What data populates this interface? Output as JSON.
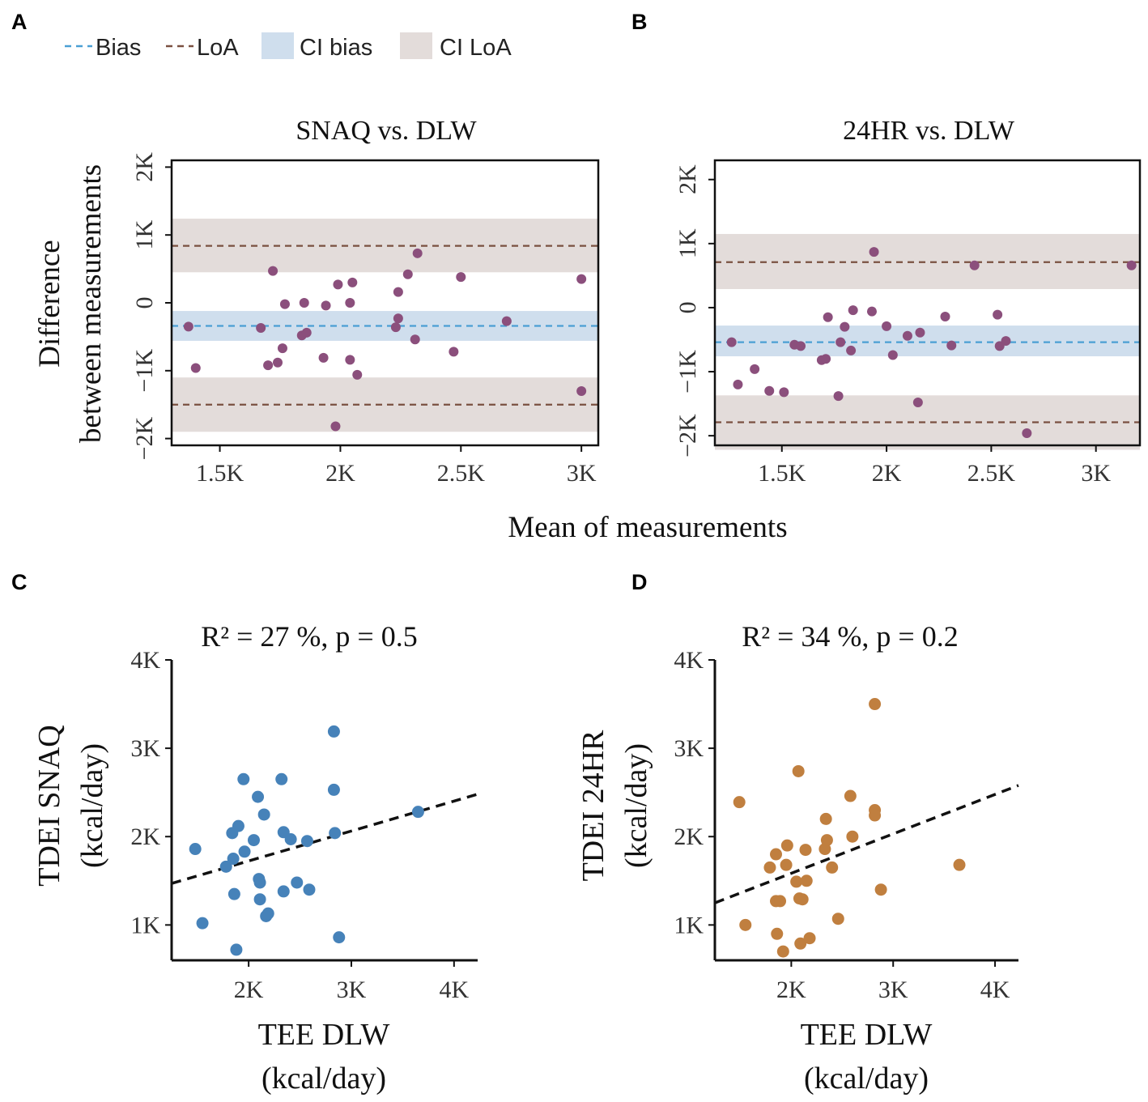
{
  "figure": {
    "panel_labels": [
      "A",
      "B",
      "C",
      "D"
    ],
    "shared_xlabel": "Mean of measurements",
    "shared_ylabel_line1": "Difference",
    "shared_ylabel_line2": "between measurements"
  },
  "legend": {
    "bias": "Bias",
    "loa": "LoA",
    "ci_bias": "CI bias",
    "ci_loa": "CI LoA"
  },
  "colors": {
    "bias_line": "#4a9fd4",
    "loa_line": "#7a5040",
    "ci_bias_band": "#cfdeed",
    "ci_loa_band": "#e3dcda",
    "ba_points": "#8b4f7c",
    "snaq_points": "#4682b9",
    "hr24_points": "#c07f3f",
    "regression_line": "#111111"
  },
  "chart_data": [
    {
      "id": "A",
      "type": "scatter",
      "title": "SNAQ vs. DLW",
      "xlim": [
        1300,
        3070
      ],
      "ylim": [
        -2100,
        2100
      ],
      "xticks": [
        1500,
        2000,
        2500,
        3000
      ],
      "xticklabels": [
        "1.5K",
        "2K",
        "2.5K",
        "3K"
      ],
      "yticks": [
        -2000,
        -1000,
        0,
        1000,
        2000
      ],
      "yticklabels": [
        "−2K",
        "−1K",
        "0",
        "1K",
        "2K"
      ],
      "bias": -340,
      "bias_ci": [
        -560,
        -120
      ],
      "loa_upper": 840,
      "loa_upper_ci": [
        450,
        1240
      ],
      "loa_lower": -1500,
      "loa_lower_ci": [
        -1900,
        -1100
      ],
      "points": [
        [
          1370,
          -350
        ],
        [
          1400,
          -960
        ],
        [
          1670,
          -370
        ],
        [
          1700,
          -920
        ],
        [
          1720,
          470
        ],
        [
          1740,
          -880
        ],
        [
          1760,
          -670
        ],
        [
          1770,
          -20
        ],
        [
          1840,
          -480
        ],
        [
          1850,
          0
        ],
        [
          1860,
          -440
        ],
        [
          1930,
          -810
        ],
        [
          1940,
          -40
        ],
        [
          1980,
          -1820
        ],
        [
          1990,
          270
        ],
        [
          2040,
          0
        ],
        [
          2040,
          -840
        ],
        [
          2050,
          300
        ],
        [
          2070,
          -1060
        ],
        [
          2230,
          -360
        ],
        [
          2240,
          160
        ],
        [
          2240,
          -230
        ],
        [
          2280,
          420
        ],
        [
          2310,
          -540
        ],
        [
          2320,
          730
        ],
        [
          2470,
          -720
        ],
        [
          2500,
          380
        ],
        [
          2690,
          -270
        ],
        [
          3000,
          350
        ],
        [
          3000,
          -1300
        ]
      ]
    },
    {
      "id": "B",
      "type": "scatter",
      "title": "24HR vs. DLW",
      "xlim": [
        1180,
        3210
      ],
      "ylim": [
        -2150,
        2300
      ],
      "xticks": [
        1500,
        2000,
        2500,
        3000
      ],
      "xticklabels": [
        "1.5K",
        "2K",
        "2.5K",
        "3K"
      ],
      "yticks": [
        -2000,
        -1000,
        0,
        1000,
        2000
      ],
      "yticklabels": [
        "−2K",
        "−1K",
        "0",
        "1K",
        "2K"
      ],
      "bias": -540,
      "bias_ci": [
        -760,
        -280
      ],
      "loa_upper": 710,
      "loa_upper_ci": [
        290,
        1150
      ],
      "loa_lower": -1790,
      "loa_lower_ci": [
        -2220,
        -1370
      ],
      "points": [
        [
          1260,
          -540
        ],
        [
          1290,
          -1200
        ],
        [
          1370,
          -960
        ],
        [
          1440,
          -1300
        ],
        [
          1510,
          -1320
        ],
        [
          1560,
          -580
        ],
        [
          1590,
          -600
        ],
        [
          1690,
          -820
        ],
        [
          1710,
          -800
        ],
        [
          1720,
          -150
        ],
        [
          1770,
          -1380
        ],
        [
          1780,
          -540
        ],
        [
          1800,
          -300
        ],
        [
          1830,
          -670
        ],
        [
          1840,
          -40
        ],
        [
          1930,
          -60
        ],
        [
          1940,
          870
        ],
        [
          2000,
          -290
        ],
        [
          2030,
          -740
        ],
        [
          2100,
          -440
        ],
        [
          2150,
          -1480
        ],
        [
          2160,
          -390
        ],
        [
          2280,
          -140
        ],
        [
          2310,
          -590
        ],
        [
          2420,
          660
        ],
        [
          2530,
          -110
        ],
        [
          2540,
          -600
        ],
        [
          2570,
          -520
        ],
        [
          2670,
          -1960
        ],
        [
          3170,
          660
        ]
      ]
    },
    {
      "id": "C",
      "type": "scatter",
      "title": "R² = 27 %, p = 0.5",
      "xlabel_line1": "TEE DLW",
      "xlabel_line2": "(kcal/day)",
      "ylabel_line1": "TDEI SNAQ",
      "ylabel_line2": "(kcal/day)",
      "xlim": [
        1250,
        4230
      ],
      "ylim": [
        600,
        4000
      ],
      "xticks": [
        2000,
        3000,
        4000
      ],
      "xticklabels": [
        "2K",
        "3K",
        "4K"
      ],
      "yticks": [
        1000,
        2000,
        3000,
        4000
      ],
      "yticklabels": [
        "1K",
        "2K",
        "3K",
        "4K"
      ],
      "regression": {
        "x": [
          1250,
          4230
        ],
        "y": [
          1470,
          2480
        ]
      },
      "points": [
        [
          1480,
          1860
        ],
        [
          1550,
          1020
        ],
        [
          1780,
          1660
        ],
        [
          1840,
          2040
        ],
        [
          1850,
          1750
        ],
        [
          1860,
          1350
        ],
        [
          1880,
          720
        ],
        [
          1900,
          2120
        ],
        [
          1950,
          2650
        ],
        [
          1960,
          1830
        ],
        [
          2050,
          1960
        ],
        [
          2090,
          2450
        ],
        [
          2100,
          1520
        ],
        [
          2110,
          1480
        ],
        [
          2110,
          1290
        ],
        [
          2150,
          2250
        ],
        [
          2170,
          1100
        ],
        [
          2190,
          1130
        ],
        [
          2320,
          2650
        ],
        [
          2340,
          2050
        ],
        [
          2340,
          1380
        ],
        [
          2410,
          1970
        ],
        [
          2470,
          1480
        ],
        [
          2570,
          1950
        ],
        [
          2590,
          1400
        ],
        [
          2830,
          2530
        ],
        [
          2830,
          3190
        ],
        [
          2840,
          2040
        ],
        [
          2880,
          860
        ],
        [
          3650,
          2280
        ]
      ]
    },
    {
      "id": "D",
      "type": "scatter",
      "title": "R² = 34 %, p = 0.2",
      "xlabel_line1": "TEE DLW",
      "xlabel_line2": "(kcal/day)",
      "ylabel_line1": "TDEI 24HR",
      "ylabel_line2": "(kcal/day)",
      "xlim": [
        1250,
        4230
      ],
      "ylim": [
        600,
        4000
      ],
      "xticks": [
        2000,
        3000,
        4000
      ],
      "xticklabels": [
        "2K",
        "3K",
        "4K"
      ],
      "yticks": [
        1000,
        2000,
        3000,
        4000
      ],
      "yticklabels": [
        "1K",
        "2K",
        "3K",
        "4K"
      ],
      "regression": {
        "x": [
          1250,
          4230
        ],
        "y": [
          1250,
          2580
        ]
      },
      "points": [
        [
          1490,
          2390
        ],
        [
          1550,
          1000
        ],
        [
          1790,
          1650
        ],
        [
          1850,
          1800
        ],
        [
          1850,
          1270
        ],
        [
          1860,
          900
        ],
        [
          1890,
          1270
        ],
        [
          1920,
          700
        ],
        [
          1950,
          1680
        ],
        [
          1960,
          1900
        ],
        [
          2050,
          1490
        ],
        [
          2070,
          2740
        ],
        [
          2080,
          1300
        ],
        [
          2090,
          790
        ],
        [
          2110,
          1290
        ],
        [
          2140,
          1850
        ],
        [
          2150,
          1500
        ],
        [
          2180,
          850
        ],
        [
          2330,
          1860
        ],
        [
          2340,
          2200
        ],
        [
          2350,
          1960
        ],
        [
          2400,
          1650
        ],
        [
          2460,
          1070
        ],
        [
          2580,
          2460
        ],
        [
          2600,
          2000
        ],
        [
          2820,
          2300
        ],
        [
          2820,
          2240
        ],
        [
          2820,
          3500
        ],
        [
          2880,
          1400
        ],
        [
          3650,
          1680
        ]
      ]
    }
  ]
}
